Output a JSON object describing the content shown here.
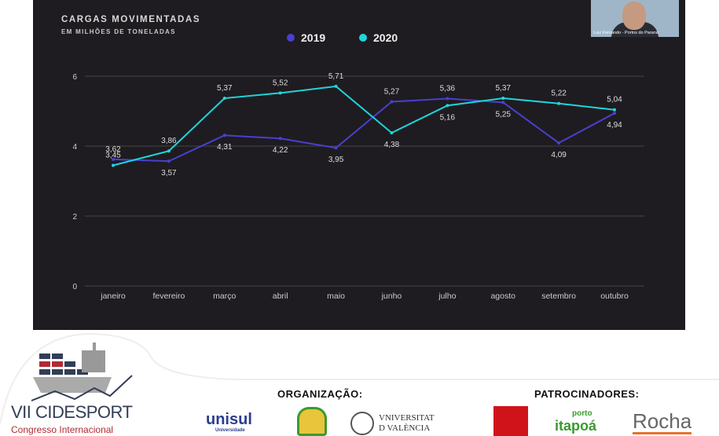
{
  "chart_data": {
    "type": "line",
    "title": "CARGAS MOVIMENTADAS",
    "subtitle": "EM MILHÕES DE TONELADAS",
    "categories": [
      "janeiro",
      "fevereiro",
      "março",
      "abril",
      "maio",
      "junho",
      "julho",
      "agosto",
      "setembro",
      "outubro"
    ],
    "series": [
      {
        "name": "2019",
        "color": "#4a3fd0",
        "values": [
          3.62,
          3.57,
          4.31,
          4.22,
          3.95,
          5.27,
          5.36,
          5.25,
          4.09,
          4.94
        ],
        "labels": [
          "3,62",
          "3,57",
          "4,31",
          "4,22",
          "3,95",
          "5,27",
          "5,36",
          "5,25",
          "4,09",
          "4,94"
        ]
      },
      {
        "name": "2020",
        "color": "#1ed6dc",
        "values": [
          3.45,
          3.86,
          5.37,
          5.52,
          5.71,
          4.38,
          5.16,
          5.37,
          5.22,
          5.04
        ],
        "labels": [
          "3,45",
          "3,86",
          "5,37",
          "5,52",
          "5,71",
          "4,38",
          "5,16",
          "5,37",
          "5,22",
          "5,04"
        ]
      }
    ],
    "label_above": [
      [
        "2019",
        "2020"
      ],
      [
        "2020"
      ],
      [
        "2020"
      ],
      [
        "2020"
      ],
      [
        "2020"
      ],
      [
        "2019"
      ],
      [
        "2019"
      ],
      [
        "2020"
      ],
      [
        "2020"
      ],
      [
        "2020"
      ]
    ],
    "yticks": [
      "0",
      "2",
      "4",
      "6"
    ],
    "ylim": [
      0,
      6
    ],
    "grid": true,
    "legend": "top-center"
  },
  "video": {
    "caption": "Luiz Fernando - Portos do Paraná"
  },
  "footer": {
    "event_title": "VII CIDESPORT",
    "event_subtitle": "Congresso Internacional",
    "organizacao": "ORGANIZAÇÃO:",
    "patrocinadores": "PATROCINADORES:",
    "unisul": "unisul",
    "unisul_sub": "Universidade",
    "valencia1": "VNIVERSITAT",
    "valencia2": "D VALÈNCIA",
    "porto": "porto",
    "itapoa": "itapoá",
    "rocha": "Rocha"
  }
}
